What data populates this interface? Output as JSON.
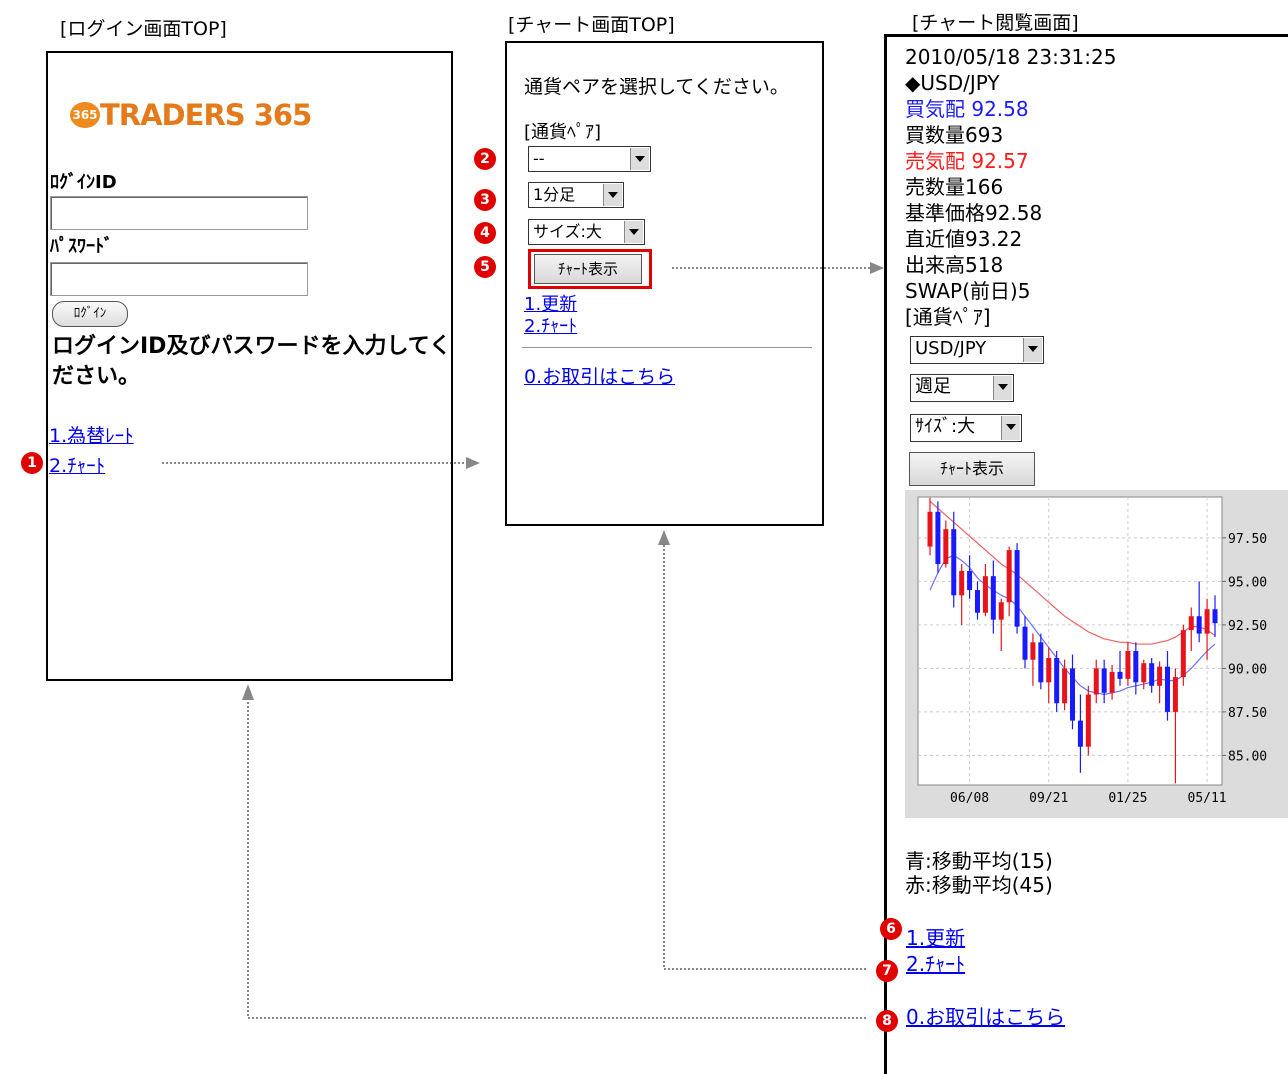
{
  "screens": [
    {
      "title": "[ログイン画面TOP]"
    },
    {
      "title": "[チャート画面TOP]"
    },
    {
      "title": "[チャート閲覧画面]"
    }
  ],
  "badges": [
    "1",
    "2",
    "3",
    "4",
    "5",
    "6",
    "7",
    "8"
  ],
  "login": {
    "logo_icon": "365",
    "logo": "TRADERS 365",
    "id_label": "ﾛｸﾞｲﾝID",
    "password_label": "ﾊﾟｽﾜｰﾄﾞ",
    "button": "ﾛｸﾞｲﾝ",
    "message": "ログインID及びパスワードを入力してください。",
    "links": [
      "1.為替ﾚｰﾄ",
      "2.ﾁｬｰﾄ"
    ]
  },
  "chart_top": {
    "prompt": "通貨ペアを選択してください。",
    "pair_label": "[通貨ﾍﾟｱ]",
    "selects": [
      "--",
      "1分足",
      "サイズ:大"
    ],
    "button": "ﾁｬｰﾄ表示",
    "links": [
      "1.更新",
      "2.ﾁｬｰﾄ"
    ],
    "trade_link": "0.お取引はこちら"
  },
  "chart_view": {
    "lines": [
      "2010/05/18 23:31:25",
      "◆USD/JPY",
      "買気配 92.58",
      "買数量693",
      "売気配 92.57",
      "売数量166",
      "基準価格92.58",
      "直近値93.22",
      "出来高518",
      "SWAP(前日)5",
      "[通貨ﾍﾟｱ]"
    ],
    "selects": [
      "USD/JPY",
      "週足",
      "ｻｲｽﾞ:大"
    ],
    "button": "ﾁｬｰﾄ表示",
    "legend": [
      "青:移動平均(15)",
      "赤:移動平均(45)"
    ],
    "links": [
      "1.更新",
      "2.ﾁｬｰﾄ"
    ],
    "trade_link": "0.お取引はこちら",
    "chart": {
      "type": "candlestick",
      "ylim": [
        83.3,
        99.85
      ],
      "yticks": [
        {
          "value": 97.5,
          "label": "97.50"
        },
        {
          "value": 95,
          "label": "95.00"
        },
        {
          "value": 92.5,
          "label": "92.50"
        },
        {
          "value": 90,
          "label": "90.00"
        },
        {
          "value": 87.5,
          "label": "87.50"
        },
        {
          "value": 85,
          "label": "85.00"
        }
      ],
      "dates": [
        null,
        null,
        null,
        null,
        null,
        "06/08",
        null,
        null,
        null,
        null,
        null,
        null,
        null,
        null,
        null,
        "09/21",
        null,
        null,
        null,
        null,
        null,
        null,
        null,
        null,
        null,
        "01/25",
        null,
        null,
        null,
        null,
        null,
        null,
        null,
        null,
        null,
        "05/11",
        null
      ],
      "up_color": "#e8141c",
      "down_color": "#1a1aff",
      "candles": [
        [
          97.0,
          99.8,
          96.5,
          99.0
        ],
        [
          99.0,
          99.6,
          95.5,
          96.0
        ],
        [
          96.0,
          98.5,
          95.8,
          98.0
        ],
        [
          98.0,
          99.0,
          93.5,
          94.2
        ],
        [
          94.2,
          96.0,
          92.5,
          95.6
        ],
        [
          95.6,
          96.5,
          94.0,
          94.5
        ],
        [
          94.5,
          95.0,
          92.8,
          93.2
        ],
        [
          93.2,
          96.0,
          93.0,
          95.3
        ],
        [
          95.3,
          96.2,
          92.0,
          92.8
        ],
        [
          92.8,
          94.0,
          91.0,
          93.8
        ],
        [
          93.8,
          97.0,
          93.0,
          96.8
        ],
        [
          96.8,
          97.2,
          92.0,
          92.4
        ],
        [
          92.4,
          93.0,
          90.0,
          90.5
        ],
        [
          90.5,
          92.0,
          89.0,
          91.5
        ],
        [
          91.5,
          92.0,
          88.8,
          89.2
        ],
        [
          89.2,
          91.2,
          88.0,
          90.6
        ],
        [
          90.6,
          91.0,
          87.5,
          88.0
        ],
        [
          88.0,
          90.5,
          87.6,
          90.0
        ],
        [
          90.0,
          90.8,
          86.5,
          87.0
        ],
        [
          87.0,
          88.5,
          84.0,
          85.5
        ],
        [
          85.5,
          89.0,
          85.0,
          88.5
        ],
        [
          88.5,
          90.5,
          88.0,
          90.0
        ],
        [
          90.0,
          90.5,
          88.0,
          88.6
        ],
        [
          88.6,
          90.2,
          88.2,
          89.8
        ],
        [
          89.8,
          91.0,
          89.0,
          89.4
        ],
        [
          89.4,
          91.5,
          89.0,
          91.0
        ],
        [
          91.0,
          91.5,
          88.5,
          89.2
        ],
        [
          89.2,
          90.5,
          88.8,
          90.3
        ],
        [
          90.3,
          90.6,
          88.6,
          89.0
        ],
        [
          89.0,
          90.4,
          88.0,
          90.1
        ],
        [
          90.1,
          91.0,
          87.0,
          87.5
        ],
        [
          87.5,
          90.0,
          83.4,
          89.5
        ],
        [
          89.5,
          92.5,
          89.0,
          92.2
        ],
        [
          92.2,
          93.5,
          91.0,
          93.0
        ],
        [
          93.0,
          95.0,
          91.5,
          92.0
        ],
        [
          92.0,
          94.0,
          90.5,
          93.4
        ],
        [
          93.4,
          94.2,
          91.8,
          92.6
        ]
      ],
      "series": [
        {
          "name": "移動平均(15)",
          "color": "#7070ff",
          "values": [
            94.5,
            95.5,
            96.3,
            96.5,
            96.2,
            95.8,
            95.2,
            94.8,
            94.5,
            94.2,
            94.0,
            93.6,
            93.0,
            92.4,
            91.8,
            91.2,
            90.6,
            90.0,
            89.5,
            89.0,
            88.7,
            88.6,
            88.5,
            88.6,
            88.7,
            88.9,
            89.0,
            89.1,
            89.2,
            89.4,
            89.3,
            89.3,
            89.6,
            90.0,
            90.5,
            91.0,
            91.4
          ]
        },
        {
          "name": "移動平均(45)",
          "color": "#f06060",
          "values": [
            99.6,
            99.2,
            98.8,
            98.4,
            98.0,
            97.6,
            97.2,
            96.8,
            96.4,
            96.0,
            95.7,
            95.4,
            95.0,
            94.6,
            94.2,
            93.8,
            93.4,
            93.0,
            92.7,
            92.4,
            92.1,
            91.9,
            91.7,
            91.6,
            91.5,
            91.5,
            91.4,
            91.4,
            91.4,
            91.5,
            91.6,
            91.8,
            92.1,
            92.4,
            92.4,
            92.2,
            91.9
          ]
        }
      ],
      "grid": true
    }
  }
}
